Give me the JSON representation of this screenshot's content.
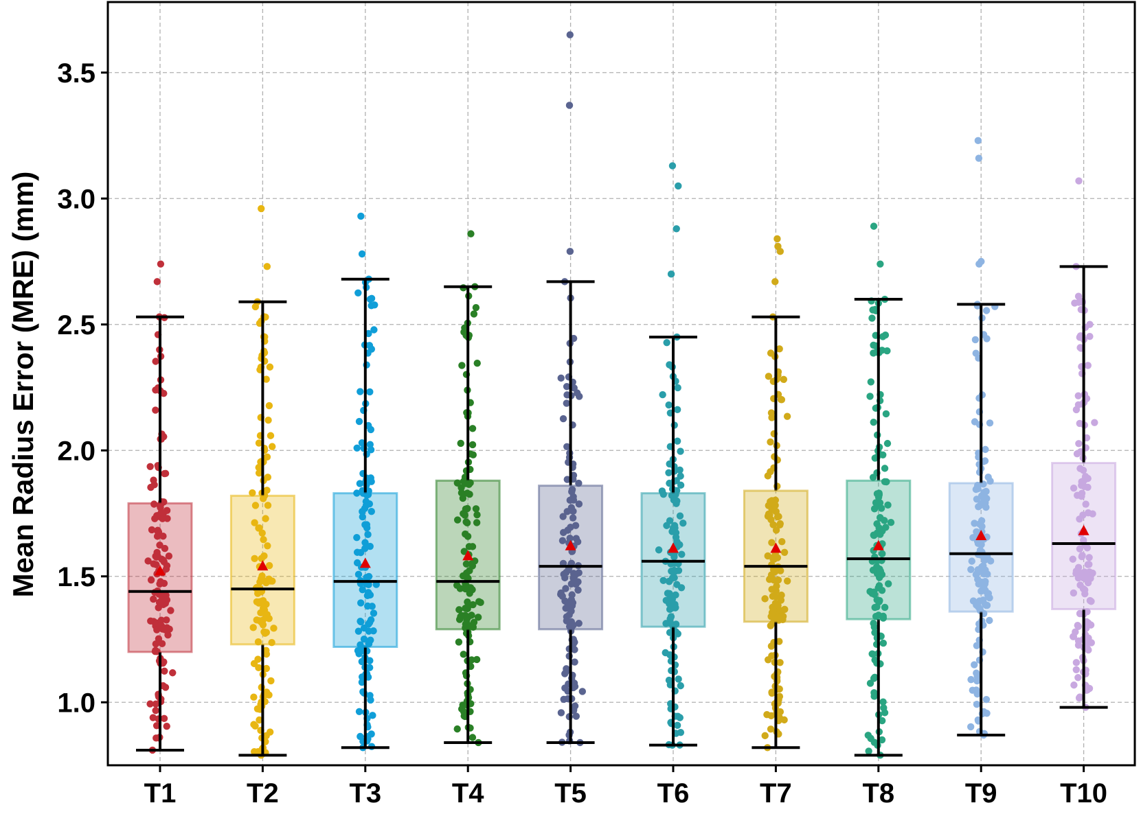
{
  "chart_data": {
    "type": "box",
    "title": "",
    "xlabel": "",
    "ylabel": "Mean Radius Error (MRE) (mm)",
    "ylim": [
      0.75,
      3.78
    ],
    "yticks": [
      1.0,
      1.5,
      2.0,
      2.5,
      3.0,
      3.5
    ],
    "ytick_labels": [
      "1.0",
      "1.5",
      "2.0",
      "2.5",
      "3.0",
      "3.5"
    ],
    "grid": true,
    "categories": [
      "T1",
      "T2",
      "T3",
      "T4",
      "T5",
      "T6",
      "T7",
      "T8",
      "T9",
      "T10"
    ],
    "colors": [
      "#c0303a",
      "#e8b612",
      "#109ed8",
      "#2a8026",
      "#5a6490",
      "#2a9eaa",
      "#d1aa1a",
      "#2aa582",
      "#8eb4e2",
      "#c8a8e0"
    ],
    "mean_marker_color": "#e00000",
    "series": [
      {
        "name": "T1",
        "min": 0.81,
        "q1": 1.2,
        "median": 1.44,
        "q3": 1.79,
        "max": 2.53,
        "mean": 1.52,
        "outliers": [
          2.67,
          2.74
        ]
      },
      {
        "name": "T2",
        "min": 0.79,
        "q1": 1.23,
        "median": 1.45,
        "q3": 1.82,
        "max": 2.59,
        "mean": 1.54,
        "outliers": [
          2.73,
          2.96
        ]
      },
      {
        "name": "T3",
        "min": 0.82,
        "q1": 1.22,
        "median": 1.48,
        "q3": 1.83,
        "max": 2.68,
        "mean": 1.55,
        "outliers": [
          2.78,
          2.93
        ]
      },
      {
        "name": "T4",
        "min": 0.84,
        "q1": 1.29,
        "median": 1.48,
        "q3": 1.88,
        "max": 2.65,
        "mean": 1.58,
        "outliers": [
          2.86
        ]
      },
      {
        "name": "T5",
        "min": 0.84,
        "q1": 1.29,
        "median": 1.54,
        "q3": 1.86,
        "max": 2.67,
        "mean": 1.62,
        "outliers": [
          2.79,
          3.37,
          3.65
        ]
      },
      {
        "name": "T6",
        "min": 0.83,
        "q1": 1.3,
        "median": 1.56,
        "q3": 1.83,
        "max": 2.45,
        "mean": 1.61,
        "outliers": [
          2.7,
          2.88,
          3.05,
          3.13
        ]
      },
      {
        "name": "T7",
        "min": 0.82,
        "q1": 1.32,
        "median": 1.54,
        "q3": 1.84,
        "max": 2.53,
        "mean": 1.61,
        "outliers": [
          2.67,
          2.79,
          2.81,
          2.84
        ]
      },
      {
        "name": "T8",
        "min": 0.79,
        "q1": 1.33,
        "median": 1.57,
        "q3": 1.88,
        "max": 2.6,
        "mean": 1.62,
        "outliers": [
          2.74,
          2.89
        ]
      },
      {
        "name": "T9",
        "min": 0.87,
        "q1": 1.36,
        "median": 1.59,
        "q3": 1.87,
        "max": 2.58,
        "mean": 1.66,
        "outliers": [
          2.74,
          2.75,
          3.16,
          3.23
        ]
      },
      {
        "name": "T10",
        "min": 0.98,
        "q1": 1.37,
        "median": 1.63,
        "q3": 1.95,
        "max": 2.73,
        "mean": 1.68,
        "outliers": [
          3.07
        ]
      }
    ]
  }
}
